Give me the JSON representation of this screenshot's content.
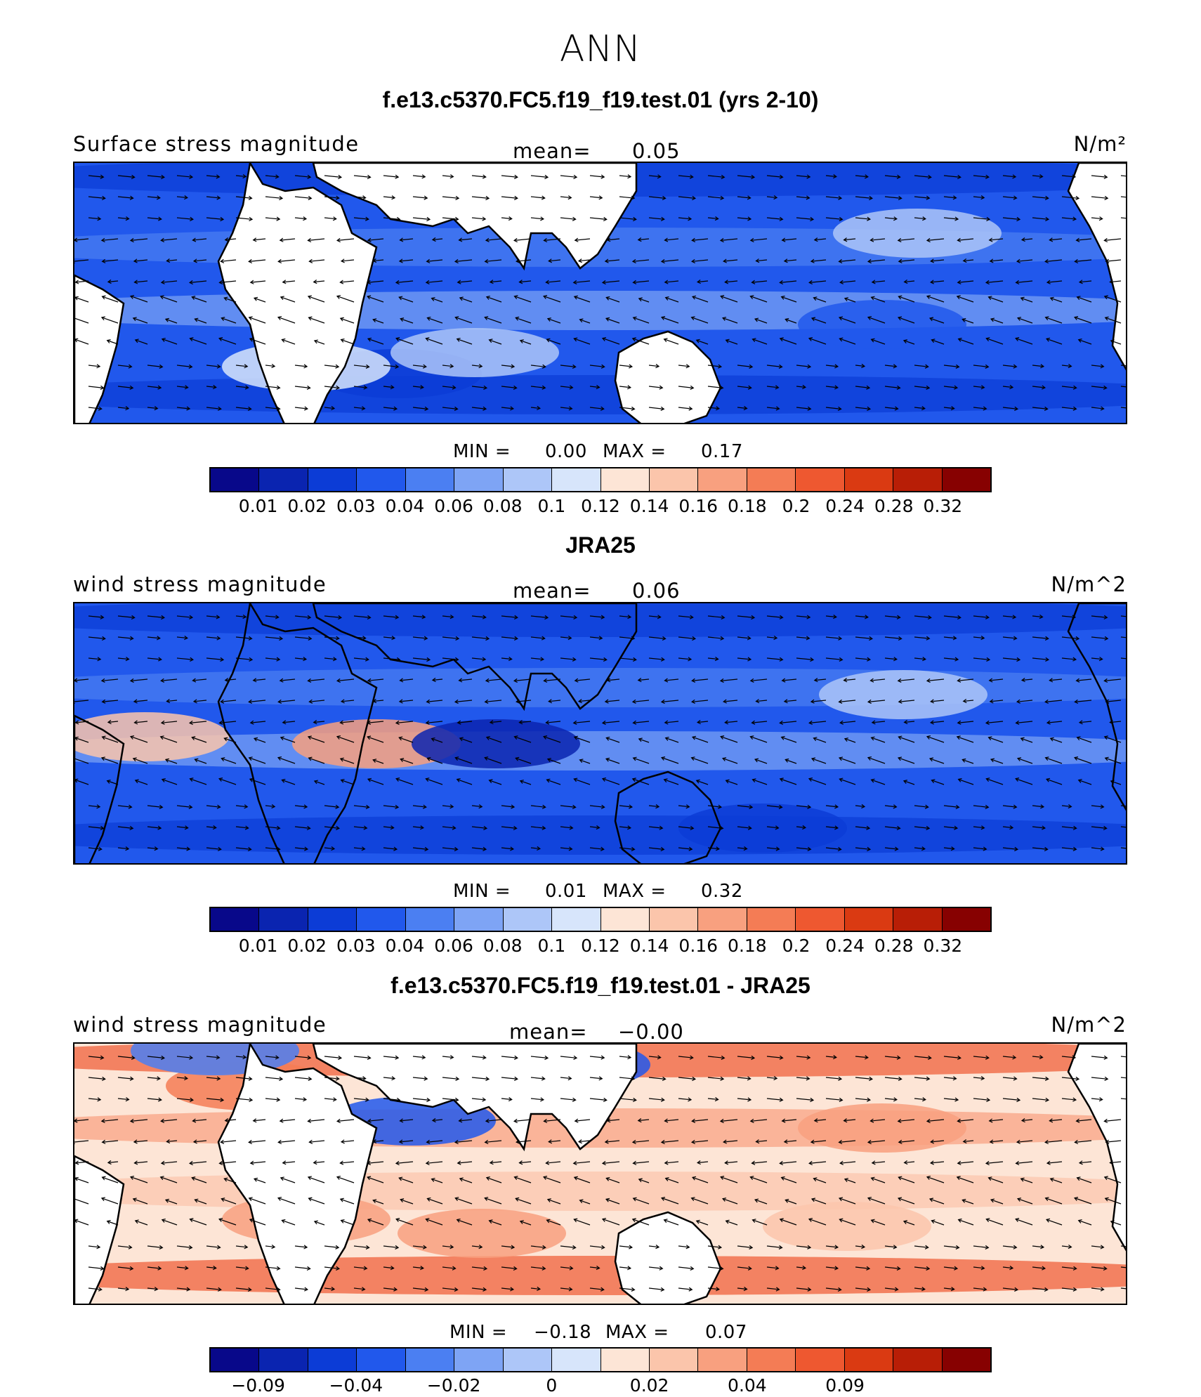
{
  "title": "ANN",
  "colors": [
    "#08088a",
    "#0a24b0",
    "#0c3cd6",
    "#2158ec",
    "#4b7ff2",
    "#7ea4f5",
    "#adc6f8",
    "#d7e5fb",
    "#fde5d6",
    "#fbc5ab",
    "#f8a07f",
    "#f47c55",
    "#ee5830",
    "#da3a12",
    "#b81e06",
    "#870101"
  ],
  "panels": [
    {
      "title": "f.e13.c5370.FC5.f19_f19.test.01 (yrs 2-10)",
      "variable": "Surface stress magnitude",
      "mean_label": "mean=",
      "mean_value": "0.05",
      "units": "N/m²",
      "min_label": "MIN =",
      "min_value": "0.00",
      "max_label": "MAX =",
      "max_value": "0.17",
      "colorbar_ticks": [
        "0.01",
        "0.02",
        "0.03",
        "0.04",
        "0.06",
        "0.08",
        "0.1",
        "0.12",
        "0.14",
        "0.16",
        "0.18",
        "0.2",
        "0.24",
        "0.28",
        "0.32"
      ]
    },
    {
      "title": "JRA25",
      "variable": "wind stress magnitude",
      "mean_label": "mean=",
      "mean_value": "0.06",
      "units": "N/m^2",
      "min_label": "MIN =",
      "min_value": "0.01",
      "max_label": "MAX =",
      "max_value": "0.32",
      "colorbar_ticks": [
        "0.01",
        "0.02",
        "0.03",
        "0.04",
        "0.06",
        "0.08",
        "0.1",
        "0.12",
        "0.14",
        "0.16",
        "0.18",
        "0.2",
        "0.24",
        "0.28",
        "0.32"
      ]
    },
    {
      "title": "f.e13.c5370.FC5.f19_f19.test.01 - JRA25",
      "variable": "wind stress magnitude",
      "mean_label": "mean=",
      "mean_value": "−0.00",
      "units": "N/m^2",
      "min_label": "MIN =",
      "min_value": "−0.18",
      "max_label": "MAX =",
      "max_value": "0.07",
      "colorbar_ticks": [
        "−0.09",
        "",
        "−0.04",
        "",
        "−0.02",
        "",
        "0",
        "",
        "0.02",
        "",
        "0.04",
        "",
        "0.09",
        "",
        ""
      ]
    }
  ]
}
